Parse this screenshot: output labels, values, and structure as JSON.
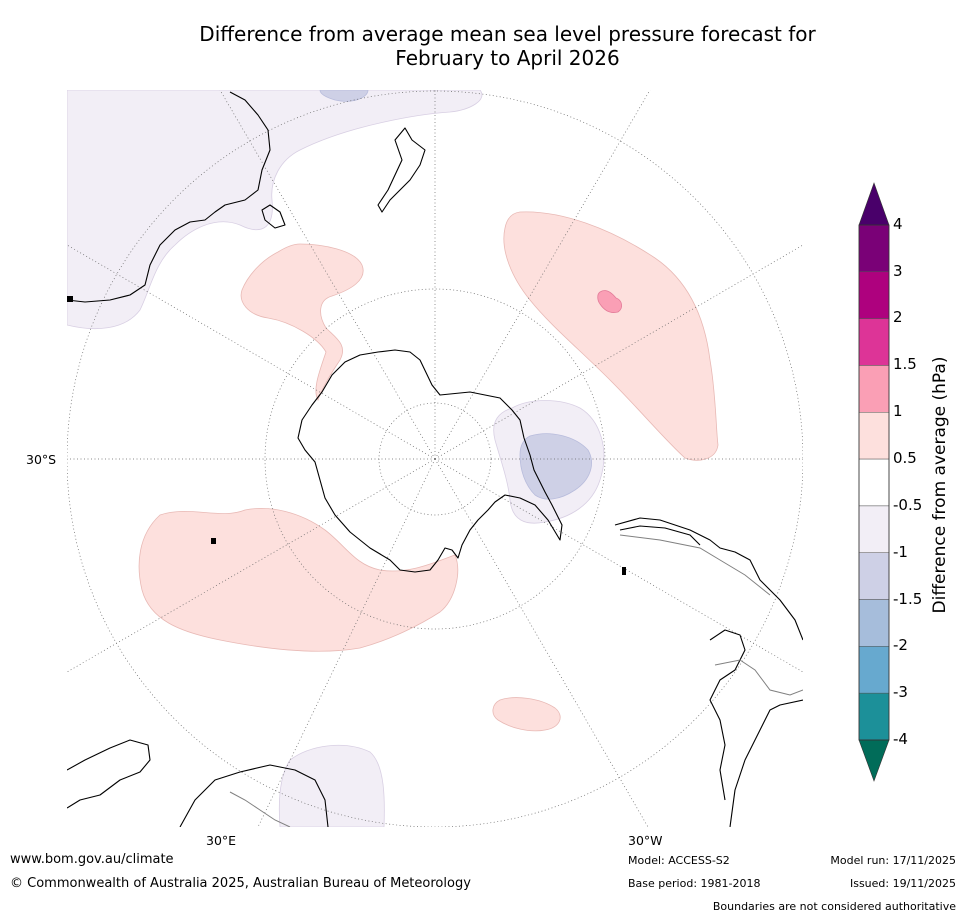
{
  "title_line1": "Difference from average mean sea level pressure forecast for",
  "title_line2": "February to April 2026",
  "graticule_labels": {
    "left": "30°S",
    "bottom_left": "30°E",
    "bottom_right": "30°W"
  },
  "colorbar": {
    "title": "Difference from average (hPa)",
    "tick_labels": [
      "4",
      "3",
      "2",
      "1.5",
      "1",
      "0.5",
      "-0.5",
      "-1",
      "-1.5",
      "-2",
      "-3",
      "-4"
    ],
    "bins_top_to_bottom": [
      {
        "range": "3 to 4",
        "color": "#7a0177"
      },
      {
        "range": "2 to 3",
        "color": "#ae017e"
      },
      {
        "range": "1.5 to 2",
        "color": "#dd3497"
      },
      {
        "range": "1 to 1.5",
        "color": "#fa9fb5"
      },
      {
        "range": "0.5 to 1",
        "color": "#fde0dd"
      },
      {
        "range": "-0.5 to 0.5",
        "color": "#ffffff"
      },
      {
        "range": "-1 to -0.5",
        "color": "#f2eef6"
      },
      {
        "range": "-1.5 to -1",
        "color": "#ced0e6"
      },
      {
        "range": "-2 to -1.5",
        "color": "#a6bddb"
      },
      {
        "range": "-3 to -2",
        "color": "#67a9cf"
      },
      {
        "range": "-4 to -3",
        "color": "#1c9099"
      }
    ],
    "over_color": "#49006a",
    "under_color": "#016c59"
  },
  "footer": {
    "website": "www.bom.gov.au/climate",
    "copyright": "© Commonwealth of Australia 2025, Australian Bureau of Meteorology",
    "model": "Model: ACCESS-S2",
    "base_period": "Base period: 1981-2018",
    "model_run": "Model run: 17/11/2025",
    "issued": "Issued: 19/11/2025",
    "disclaimer": "Boundaries are not considered authoritative"
  },
  "colors": {
    "coast": "#000000",
    "border": "#808080",
    "graticule": "#666666"
  }
}
